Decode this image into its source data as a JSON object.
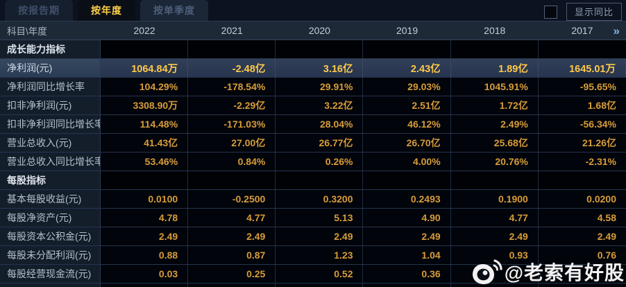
{
  "tabs": [
    {
      "id": "report-period",
      "label": "按报告期",
      "active": false
    },
    {
      "id": "annual",
      "label": "按年度",
      "active": true
    },
    {
      "id": "single-quarter",
      "label": "按单季度",
      "active": false
    }
  ],
  "controls": {
    "show_yoy_label": "显示同比",
    "checkbox_checked": false
  },
  "table": {
    "corner_label": "科目\\年度",
    "years": [
      "2022",
      "2021",
      "2020",
      "2019",
      "2018",
      "2017"
    ],
    "more_icon": "»",
    "rows": [
      {
        "type": "section",
        "label": "成长能力指标"
      },
      {
        "type": "data",
        "label": "净利润(元)",
        "highlight": true,
        "values": [
          "1064.84万",
          "-2.48亿",
          "3.16亿",
          "2.43亿",
          "1.89亿",
          "1645.01万"
        ]
      },
      {
        "type": "data",
        "label": "净利润同比增长率",
        "values": [
          "104.29%",
          "-178.54%",
          "29.91%",
          "29.03%",
          "1045.91%",
          "-95.65%"
        ]
      },
      {
        "type": "data",
        "label": "扣非净利润(元)",
        "values": [
          "3308.90万",
          "-2.29亿",
          "3.22亿",
          "2.51亿",
          "1.72亿",
          "1.68亿"
        ]
      },
      {
        "type": "data",
        "label": "扣非净利润同比增长率",
        "values": [
          "114.48%",
          "-171.03%",
          "28.04%",
          "46.12%",
          "2.49%",
          "-56.34%"
        ]
      },
      {
        "type": "data",
        "label": "营业总收入(元)",
        "values": [
          "41.43亿",
          "27.00亿",
          "26.77亿",
          "26.70亿",
          "25.68亿",
          "21.26亿"
        ]
      },
      {
        "type": "data",
        "label": "营业总收入同比增长率",
        "values": [
          "53.46%",
          "0.84%",
          "0.26%",
          "4.00%",
          "20.76%",
          "-2.31%"
        ]
      },
      {
        "type": "section",
        "label": "每股指标"
      },
      {
        "type": "data",
        "label": "基本每股收益(元)",
        "values": [
          "0.0100",
          "-0.2500",
          "0.3200",
          "0.2493",
          "0.1900",
          "0.0200"
        ]
      },
      {
        "type": "data",
        "label": "每股净资产(元)",
        "values": [
          "4.78",
          "4.77",
          "5.13",
          "4.90",
          "4.77",
          "4.58"
        ]
      },
      {
        "type": "data",
        "label": "每股资本公积金(元)",
        "values": [
          "2.49",
          "2.49",
          "2.49",
          "2.49",
          "2.49",
          "2.49"
        ]
      },
      {
        "type": "data",
        "label": "每股未分配利润(元)",
        "values": [
          "0.88",
          "0.87",
          "1.23",
          "1.04",
          "0.93",
          "0.76"
        ]
      },
      {
        "type": "data",
        "label": "每股经营现金流(元)",
        "values": [
          "0.03",
          "0.25",
          "0.52",
          "0.36",
          "",
          ""
        ]
      }
    ]
  },
  "watermark": {
    "handle": "@老索有好股",
    "icon": "weibo-logo"
  },
  "colors": {
    "page_bg": "#0a0f18",
    "value_gold": "#d89d3a",
    "highlight_gold": "#ffc94b",
    "tab_active_text": "#ffd04a",
    "chevron_blue": "#7fb3e2",
    "header_bg": "#1d2937",
    "label_col_bg": "#141e2b",
    "highlight_row_bg": "#31455f"
  }
}
